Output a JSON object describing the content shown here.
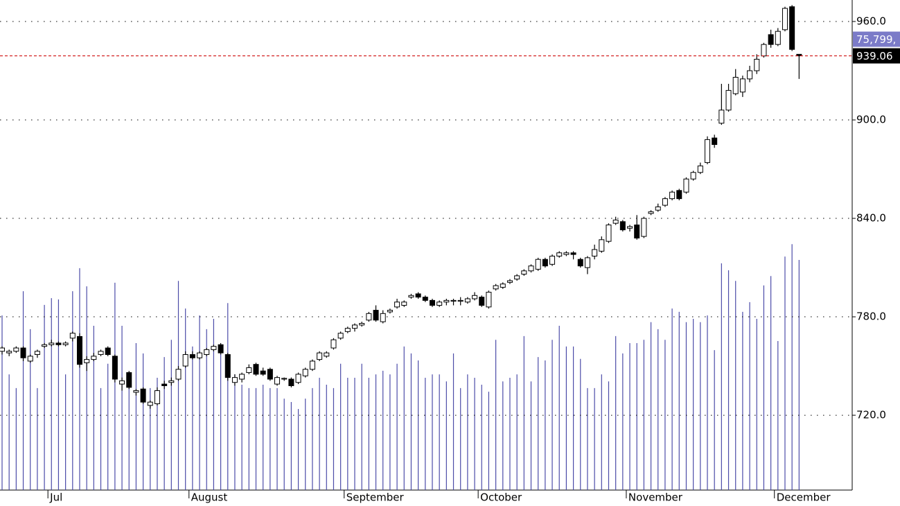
{
  "chart_data": {
    "type": "candlestick",
    "categories": [
      null,
      null,
      null,
      null,
      null,
      null,
      null,
      "Jul",
      null,
      null,
      null,
      null,
      null,
      null,
      null,
      null,
      null,
      null,
      null,
      null,
      null,
      null,
      null,
      null,
      null,
      null,
      null,
      "August",
      null,
      null,
      null,
      null,
      null,
      null,
      null,
      null,
      null,
      null,
      null,
      null,
      null,
      null,
      null,
      null,
      null,
      null,
      null,
      null,
      null,
      "September",
      null,
      null,
      null,
      null,
      null,
      null,
      null,
      null,
      null,
      null,
      null,
      null,
      null,
      null,
      null,
      null,
      null,
      null,
      "October",
      null,
      null,
      null,
      null,
      null,
      null,
      null,
      null,
      null,
      null,
      null,
      null,
      null,
      null,
      null,
      null,
      null,
      null,
      null,
      null,
      "November",
      null,
      null,
      null,
      null,
      null,
      null,
      null,
      null,
      null,
      null,
      null,
      null,
      null,
      null,
      null,
      null,
      null,
      null,
      null,
      null,
      "December",
      null,
      null,
      null
    ],
    "open": [
      759,
      758,
      759,
      761,
      753,
      757,
      762,
      763,
      764,
      763,
      767,
      768,
      752,
      754,
      757,
      761,
      756,
      739,
      746,
      734,
      736,
      726,
      727,
      739,
      740,
      742,
      750,
      757,
      755,
      757,
      760,
      763,
      757,
      740,
      742,
      746,
      751,
      747,
      748,
      739,
      742,
      742,
      740,
      744,
      748,
      754,
      756,
      761,
      767,
      771,
      773,
      775,
      778,
      784,
      777,
      783,
      786,
      787,
      792,
      794,
      792,
      790,
      787,
      789,
      789.5,
      789.5,
      789,
      791,
      792,
      786,
      797,
      798,
      801,
      803,
      806,
      808,
      809,
      815,
      812,
      817,
      818,
      819,
      815,
      810,
      817,
      820,
      826,
      837,
      838,
      834,
      836,
      829,
      843,
      845,
      848,
      852,
      857,
      856,
      864,
      868,
      874,
      889,
      898,
      906,
      916,
      917,
      925,
      930,
      939,
      952,
      946,
      955,
      969,
      940
    ],
    "high": [
      762,
      760,
      762,
      762,
      757,
      760,
      764,
      766,
      765,
      765,
      771,
      770,
      756,
      758,
      760,
      762,
      757,
      743,
      747,
      736,
      737,
      729,
      737,
      741,
      743,
      750,
      759,
      759,
      759,
      761,
      763,
      764,
      758,
      745,
      746,
      751,
      752,
      749,
      749,
      744,
      743,
      743,
      746,
      749,
      754,
      759,
      759,
      767,
      771,
      774,
      776,
      777,
      783,
      787,
      784,
      785,
      791,
      790,
      794,
      795,
      793,
      791,
      790,
      791,
      791,
      792,
      792,
      795,
      793,
      796,
      800,
      801,
      803,
      806,
      809,
      812,
      816,
      816,
      818,
      820,
      820,
      820,
      816,
      817,
      824,
      829,
      837,
      841,
      839,
      836,
      842,
      841,
      845,
      849,
      853,
      857,
      858,
      865,
      869,
      874,
      890,
      891,
      922,
      922,
      931,
      927,
      933,
      940,
      947,
      955,
      956,
      969,
      970,
      940
    ],
    "low": [
      757,
      756,
      758,
      753,
      752,
      755,
      761,
      762,
      762,
      762,
      765,
      749,
      747,
      753,
      756,
      756,
      740,
      735,
      736,
      732,
      727,
      724,
      726,
      736,
      738,
      741,
      749,
      754,
      754,
      756,
      759,
      757,
      741,
      738,
      740,
      745,
      744,
      744,
      741,
      738,
      741,
      737,
      739,
      743,
      747,
      753,
      755,
      760,
      766,
      770,
      771,
      774,
      777,
      777,
      776,
      782,
      785,
      786,
      791,
      791,
      789,
      786,
      786,
      787,
      787,
      787,
      788,
      790,
      786,
      785,
      796,
      797,
      800,
      802,
      805,
      807,
      808,
      810,
      811,
      816,
      817,
      815,
      810,
      806,
      815,
      819,
      825,
      836,
      832,
      832,
      827,
      828,
      842,
      844,
      847,
      851,
      851,
      855,
      863,
      867,
      873,
      883,
      897,
      905,
      915,
      914,
      923,
      928,
      938,
      944,
      945,
      954,
      942,
      925
    ],
    "close": [
      761,
      759,
      761,
      755,
      756,
      759,
      763,
      764,
      763,
      764,
      770,
      751,
      754,
      756,
      759,
      757,
      742,
      741,
      737,
      735,
      728,
      728,
      735,
      738,
      741,
      748,
      757,
      755,
      758,
      760,
      762,
      758,
      743,
      743,
      745,
      749,
      745,
      745,
      742,
      743,
      742.5,
      738,
      745,
      748,
      753,
      758,
      758,
      766,
      770,
      773,
      775,
      776,
      782,
      778,
      782,
      784,
      789,
      789,
      793,
      792,
      790,
      787,
      789,
      790,
      790,
      790,
      791,
      793,
      787,
      795,
      799,
      800,
      802,
      805,
      808,
      811,
      815,
      811,
      817,
      819,
      819,
      818,
      811,
      816,
      821,
      827,
      836,
      839,
      833,
      835,
      828,
      840,
      844,
      847,
      852,
      856,
      852,
      864,
      868,
      872,
      888,
      885,
      906,
      918,
      926,
      925,
      930,
      937,
      946,
      946,
      954,
      968,
      943,
      939.06
    ],
    "volume": {
      "values": [
        57500000,
        38100000,
        33600000,
        65500000,
        53000000,
        33600000,
        61000000,
        63200000,
        62800000,
        38100000,
        65500000,
        73100000,
        67100000,
        54100000,
        33600000,
        41600000,
        68300000,
        54100000,
        33600000,
        48400000,
        45000000,
        33600000,
        37000000,
        43800000,
        49500000,
        68900000,
        59800000,
        47300000,
        57500000,
        53000000,
        56400000,
        45000000,
        61600000,
        38100000,
        34700000,
        33600000,
        33600000,
        34700000,
        33600000,
        33600000,
        30100000,
        29000000,
        26700000,
        30100000,
        33600000,
        37000000,
        34700000,
        33600000,
        41600000,
        37000000,
        37000000,
        41600000,
        37000000,
        38100000,
        39300000,
        38100000,
        41600000,
        47300000,
        45000000,
        42700000,
        37000000,
        38100000,
        38100000,
        35800000,
        45000000,
        33600000,
        38100000,
        37000000,
        34700000,
        32400000,
        49500000,
        35800000,
        37000000,
        38100000,
        50700000,
        35800000,
        43800000,
        42700000,
        49500000,
        54100000,
        47300000,
        47300000,
        43200000,
        33600000,
        33600000,
        38100000,
        35800000,
        50700000,
        45000000,
        48400000,
        48400000,
        49500000,
        55300000,
        53000000,
        49500000,
        59800000,
        58700000,
        55300000,
        56400000,
        55300000,
        57500000,
        46100000,
        74700000,
        72400000,
        68900000,
        58700000,
        61900000,
        56400000,
        67400000,
        70500000,
        49100000,
        76900000,
        81000000,
        75799916
      ],
      "last_label": "75,799,"
    },
    "ylim": [
      674.4,
      973.1
    ],
    "yticks": [
      {
        "value": 720,
        "label": "720.0"
      },
      {
        "value": 780,
        "label": "780.0"
      },
      {
        "value": 840,
        "label": "840.0"
      },
      {
        "value": 900,
        "label": "900.0"
      },
      {
        "value": 960,
        "label": "960.0"
      }
    ],
    "y2lim": [
      0,
      161417000
    ],
    "grid": true,
    "up_color": "#ffffff",
    "down_color": "#000000",
    "volume_color": "#4b4ba8",
    "last_line_color": "#d01010"
  }
}
